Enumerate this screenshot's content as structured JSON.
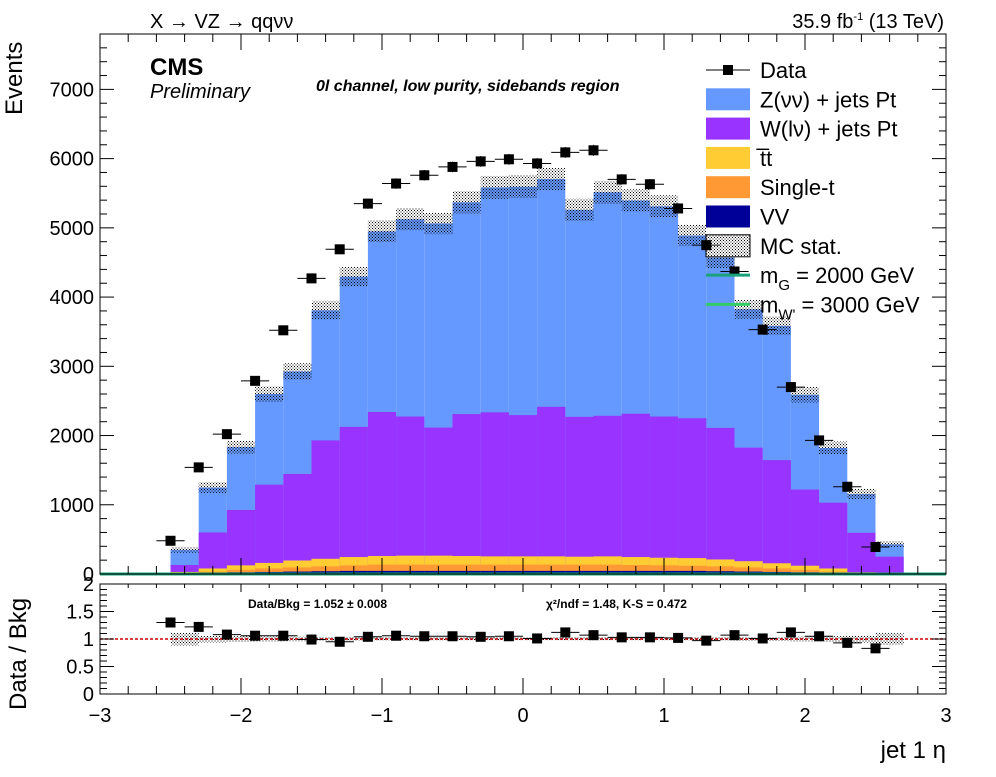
{
  "header": {
    "left": "X → VZ → qqνν",
    "lumi": "35.9 fb",
    "lumi_sup": "-1",
    "energy": "(13 TeV)"
  },
  "labels": {
    "cms": "CMS",
    "preliminary": "Preliminary",
    "region": "0l channel, low purity, sidebands region",
    "ratio_stats": "Data/Bkg = 1.052 ± 0.008",
    "chi2": "χ²/ndf = 1.48,   K-S = 0.472"
  },
  "colors": {
    "znn": "#6699ff",
    "wlv": "#9933ff",
    "ttbar": "#ffcc33",
    "single_t": "#ff9933",
    "vv": "#000099",
    "signal_g": "#1aa37a",
    "signal_w": "#33cc66",
    "ratio_line": "#cc0000"
  },
  "legend": [
    {
      "label": "Data",
      "style": "data"
    },
    {
      "label": "Z(νν) + jets Pt",
      "style": "fill",
      "color": "#6699ff"
    },
    {
      "label": "W(lν) + jets Pt",
      "style": "fill",
      "color": "#9933ff"
    },
    {
      "label": "t̅t",
      "style": "fill",
      "color": "#ffcc33"
    },
    {
      "label": "Single-t",
      "style": "fill",
      "color": "#ff9933"
    },
    {
      "label": "VV",
      "style": "fill",
      "color": "#000099"
    },
    {
      "label": "MC stat.",
      "style": "hatch"
    },
    {
      "label": "m",
      "sub": "G",
      "rest": " = 2000 GeV",
      "style": "line",
      "color": "#1aa37a"
    },
    {
      "label": "m",
      "sub": "W'",
      "rest": " = 3000 GeV",
      "style": "line",
      "color": "#33cc66"
    }
  ],
  "chart_data": [
    {
      "type": "bar",
      "stacked": true,
      "ylabel": "Events",
      "xlim": [
        -3,
        3
      ],
      "ylim": [
        0,
        7800
      ],
      "bin_edges": [
        -2.7,
        -2.5,
        -2.3,
        -2.1,
        -1.9,
        -1.7,
        -1.5,
        -1.3,
        -1.1,
        -0.9,
        -0.7,
        -0.5,
        -0.3,
        -0.1,
        0.1,
        0.3,
        0.5,
        0.7,
        0.9,
        1.1,
        1.3,
        1.5,
        1.7,
        1.9,
        2.1,
        2.3,
        2.5,
        2.7
      ],
      "yticks": [
        0,
        1000,
        2000,
        3000,
        4000,
        5000,
        6000,
        7000
      ],
      "series": [
        {
          "name": "VV",
          "values": [
            0,
            5,
            15,
            25,
            30,
            35,
            40,
            45,
            45,
            45,
            45,
            45,
            45,
            45,
            45,
            45,
            45,
            45,
            45,
            45,
            40,
            35,
            30,
            25,
            15,
            5,
            0
          ]
        },
        {
          "name": "Single-t",
          "values": [
            0,
            5,
            20,
            35,
            50,
            60,
            70,
            80,
            90,
            90,
            90,
            90,
            90,
            90,
            90,
            90,
            90,
            85,
            80,
            75,
            70,
            60,
            50,
            35,
            20,
            5,
            0
          ]
        },
        {
          "name": "t̅t",
          "values": [
            0,
            20,
            45,
            65,
            80,
            100,
            110,
            120,
            125,
            130,
            130,
            125,
            120,
            120,
            120,
            115,
            120,
            115,
            110,
            110,
            100,
            90,
            75,
            60,
            45,
            15,
            0
          ]
        },
        {
          "name": "W(lν) + jets Pt",
          "values": [
            0,
            100,
            520,
            800,
            1130,
            1250,
            1710,
            1880,
            2080,
            2010,
            1850,
            2050,
            2080,
            2040,
            2160,
            2020,
            2030,
            2070,
            2040,
            2020,
            1900,
            1640,
            1490,
            1100,
            950,
            570,
            250
          ]
        },
        {
          "name": "Z(νν) + jets Pt",
          "values": [
            0,
            220,
            650,
            910,
            1310,
            1480,
            1880,
            2170,
            2610,
            2850,
            2950,
            3060,
            3250,
            3300,
            3290,
            2990,
            3230,
            3080,
            3035,
            2640,
            2460,
            2000,
            1940,
            1370,
            790,
            560,
            180
          ]
        }
      ],
      "data": {
        "name": "Data",
        "x": [
          -2.5,
          -2.3,
          -2.1,
          -1.9,
          -1.7,
          -1.5,
          -1.3,
          -1.1,
          -0.9,
          -0.7,
          -0.5,
          -0.3,
          -0.1,
          0.1,
          0.3,
          0.5,
          0.7,
          0.9,
          1.1,
          1.3,
          1.5,
          1.7,
          1.9,
          2.1,
          2.3,
          2.5
        ],
        "values": [
          480,
          1540,
          2020,
          2790,
          3520,
          4270,
          4690,
          5350,
          5640,
          5760,
          5880,
          5960,
          5990,
          5930,
          6090,
          6120,
          5700,
          5630,
          5280,
          4750,
          4370,
          3530,
          2700,
          1930,
          1260,
          390
        ]
      }
    },
    {
      "type": "scatter",
      "ylabel": "Data / Bkg",
      "xlabel": "jet 1 η",
      "xlim": [
        -3,
        3
      ],
      "ylim": [
        0,
        2
      ],
      "xticks": [
        -3,
        -2,
        -1,
        0,
        1,
        2,
        3
      ],
      "yticks": [
        0,
        0.5,
        1,
        1.5,
        2
      ],
      "reference_line": 1,
      "x": [
        -2.5,
        -2.3,
        -2.1,
        -1.9,
        -1.7,
        -1.5,
        -1.3,
        -1.1,
        -0.9,
        -0.7,
        -0.5,
        -0.3,
        -0.1,
        0.1,
        0.3,
        0.5,
        0.7,
        0.9,
        1.1,
        1.3,
        1.5,
        1.7,
        1.9,
        2.1,
        2.3,
        2.5
      ],
      "values": [
        1.3,
        1.22,
        1.08,
        1.06,
        1.06,
        0.99,
        0.95,
        1.04,
        1.06,
        1.05,
        1.05,
        1.04,
        1.05,
        1.01,
        1.12,
        1.07,
        1.03,
        1.03,
        1.02,
        0.97,
        1.07,
        1.01,
        1.12,
        1.05,
        0.93,
        0.83
      ]
    }
  ]
}
